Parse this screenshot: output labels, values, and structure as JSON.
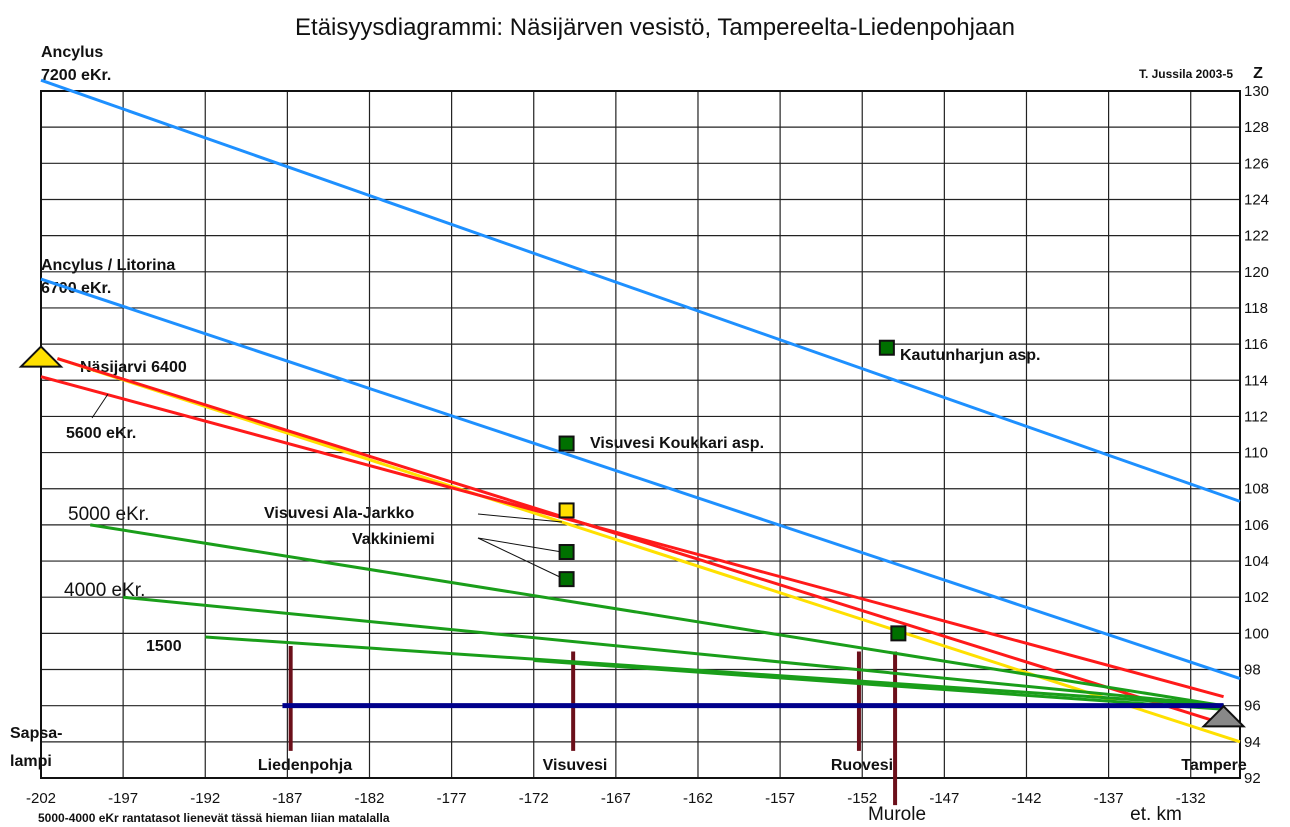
{
  "chart_data": {
    "type": "line",
    "title": "Etäisyysdiagrammi: Näsijärven vesistö, Tampereelta-Liedenpohjaan",
    "author": "T. Jussila 2003-5",
    "xlabel": "et. km",
    "ylabel": "Z",
    "xlim": [
      -202,
      -129
    ],
    "ylim": [
      92,
      130
    ],
    "x_ticks": [
      -202,
      -197,
      -192,
      -187,
      -182,
      -177,
      -172,
      -167,
      -162,
      -157,
      -152,
      -147,
      -142,
      -137,
      -132
    ],
    "y_ticks": [
      92,
      94,
      96,
      98,
      100,
      102,
      104,
      106,
      108,
      110,
      112,
      114,
      116,
      118,
      120,
      122,
      124,
      126,
      128,
      130
    ],
    "grid": true,
    "footnote": "5000-4000 eKr rantatasot lienevät tässä hieman liian matalalla",
    "series": [
      {
        "name": "Ancylus 7200 eKr.",
        "color": "#1e90ff",
        "x": [
          -202,
          -129
        ],
        "y": [
          130.6,
          107.3
        ]
      },
      {
        "name": "Ancylus / Litorina 6700 eKr.",
        "color": "#1e90ff",
        "x": [
          -202,
          -129
        ],
        "y": [
          119.6,
          97.5
        ]
      },
      {
        "name": "Näsijarvi 6400",
        "color": "#ffe000",
        "x": [
          -201,
          -129
        ],
        "y": [
          115.2,
          94.0
        ]
      },
      {
        "name": "Näsijarvi 6400",
        "color": "#ff1a1a",
        "x": [
          -201,
          -130
        ],
        "y": [
          115.2,
          95.0
        ]
      },
      {
        "name": "5600 eKr.",
        "color": "#ff1a1a",
        "x": [
          -202,
          -130
        ],
        "y": [
          114.2,
          96.5
        ]
      },
      {
        "name": "5000 eKr.",
        "color": "#1a9e1a",
        "x": [
          -199,
          -130
        ],
        "y": [
          106.0,
          96.0
        ]
      },
      {
        "name": "4000 eKr.",
        "color": "#1a9e1a",
        "x": [
          -197,
          -130
        ],
        "y": [
          102.0,
          96.0
        ]
      },
      {
        "name": "1500",
        "color": "#1a9e1a",
        "x": [
          -192,
          -130
        ],
        "y": [
          99.8,
          96.0
        ]
      },
      {
        "name": "",
        "color": "#1a9e1a",
        "x": [
          -172,
          -130
        ],
        "y": [
          98.5,
          95.8
        ]
      },
      {
        "name": "",
        "color": "#00008b",
        "x": [
          -187.3,
          -130
        ],
        "y": [
          96.0,
          96.0
        ]
      }
    ],
    "points": [
      {
        "name": "Kautunharjun asp.",
        "x": -150.5,
        "y": 115.8,
        "color": "#007000"
      },
      {
        "name": "Visuvesi Koukkari asp.",
        "x": -170,
        "y": 110.5,
        "color": "#007000"
      },
      {
        "name": "Visuvesi Ala-Jarkko",
        "x": -170,
        "y": 106.8,
        "color": "#ffe000"
      },
      {
        "name": "Vakkiniemi",
        "x": -170,
        "y": 104.5,
        "color": "#007000"
      },
      {
        "name": "Vakkiniemi",
        "x": -170,
        "y": 103.0,
        "color": "#007000"
      },
      {
        "name": "",
        "x": -149.8,
        "y": 100.0,
        "color": "#007000"
      }
    ],
    "markers": [
      {
        "name": "",
        "x": -202,
        "y": 115.2,
        "color": "#ffe000"
      },
      {
        "name": "",
        "x": -130,
        "y": 95.3,
        "color": "#888888"
      }
    ],
    "places": [
      {
        "name": "Liedenpohja",
        "x": -186.8,
        "y_top": 99.3,
        "y_bottom": 93.5
      },
      {
        "name": "Visuvesi",
        "x": -169.6,
        "y_top": 99.0,
        "y_bottom": 93.5
      },
      {
        "name": "Ruovesi",
        "x": -152.2,
        "y_top": 99.0,
        "y_bottom": 93.5
      },
      {
        "name": "Murole",
        "x": -150.0,
        "y_top": 99.0,
        "y_bottom": 90.5
      }
    ],
    "annotations": [
      {
        "line1": "Ancylus",
        "line2": "7200 eKr."
      },
      {
        "line1": "Ancylus / Litorina",
        "line2": "6700 eKr."
      },
      {
        "line1": "Näsijarvi 6400",
        "line2": ""
      },
      {
        "line1": "5600 eKr.",
        "line2": ""
      },
      {
        "line1": "5000 eKr.",
        "line2": ""
      },
      {
        "line1": "4000 eKr.",
        "line2": ""
      },
      {
        "line1": "1500",
        "line2": ""
      },
      {
        "line1": "Sapsa-",
        "line2": "lampi"
      },
      {
        "line1": "Tampere",
        "line2": ""
      }
    ]
  }
}
